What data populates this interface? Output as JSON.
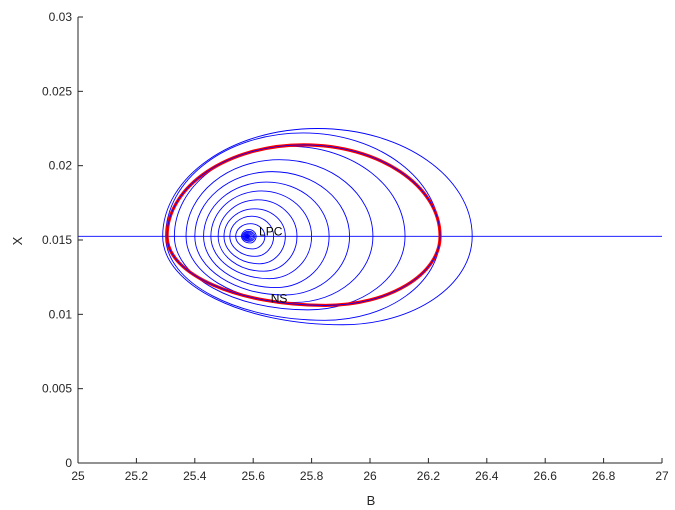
{
  "chart_data": {
    "type": "line",
    "title": "",
    "xlabel": "B",
    "ylabel": "X",
    "xlim": [
      25,
      27
    ],
    "ylim": [
      0,
      0.03
    ],
    "x_ticks": [
      25,
      25.2,
      25.4,
      25.6,
      25.8,
      26,
      26.2,
      26.4,
      26.6,
      26.8,
      27
    ],
    "x_tick_labels": [
      "25",
      "25.2",
      "25.4",
      "25.6",
      "25.8",
      "26",
      "26.2",
      "26.4",
      "26.6",
      "26.8",
      "27"
    ],
    "y_ticks": [
      0,
      0.005,
      0.01,
      0.015,
      0.02,
      0.025,
      0.03
    ],
    "y_tick_labels": [
      "0",
      "0.005",
      "0.01",
      "0.015",
      "0.02",
      "0.025",
      "0.03"
    ],
    "grid": false,
    "colors": {
      "curves": "#0000ff",
      "highlight": "#ff0000",
      "axes": "#262626"
    },
    "equilibrium_line": {
      "y": 0.01525
    },
    "center": {
      "x": 25.58,
      "y": 0.01525
    },
    "limit_cycle_family": {
      "color": "#0000ff",
      "left_B": [
        25.56,
        25.54,
        25.52,
        25.5,
        25.48,
        25.455,
        25.43,
        25.4,
        25.37,
        25.33,
        25.3,
        25.29
      ],
      "right_B": [
        25.61,
        25.64,
        25.67,
        25.71,
        25.75,
        25.8,
        25.86,
        25.93,
        26.01,
        26.12,
        26.24,
        26.35
      ],
      "top_X": [
        0.0157,
        0.0161,
        0.0166,
        0.0171,
        0.0177,
        0.0183,
        0.0189,
        0.0196,
        0.0204,
        0.0213,
        0.0222,
        0.0225
      ],
      "bottom_X": [
        0.0148,
        0.0144,
        0.0139,
        0.0134,
        0.0129,
        0.0124,
        0.0118,
        0.0113,
        0.0108,
        0.0103,
        0.0096,
        0.0093
      ]
    },
    "highlighted_cycle": {
      "color": "#ff0000",
      "left_B": 25.305,
      "right_B": 26.24,
      "top_X": 0.0214,
      "bottom_X": 0.0106
    },
    "annotations": [
      {
        "text": "LPC",
        "x": 25.62,
        "y": 0.0153
      },
      {
        "text": "NS",
        "x": 25.66,
        "y": 0.0108
      }
    ]
  }
}
